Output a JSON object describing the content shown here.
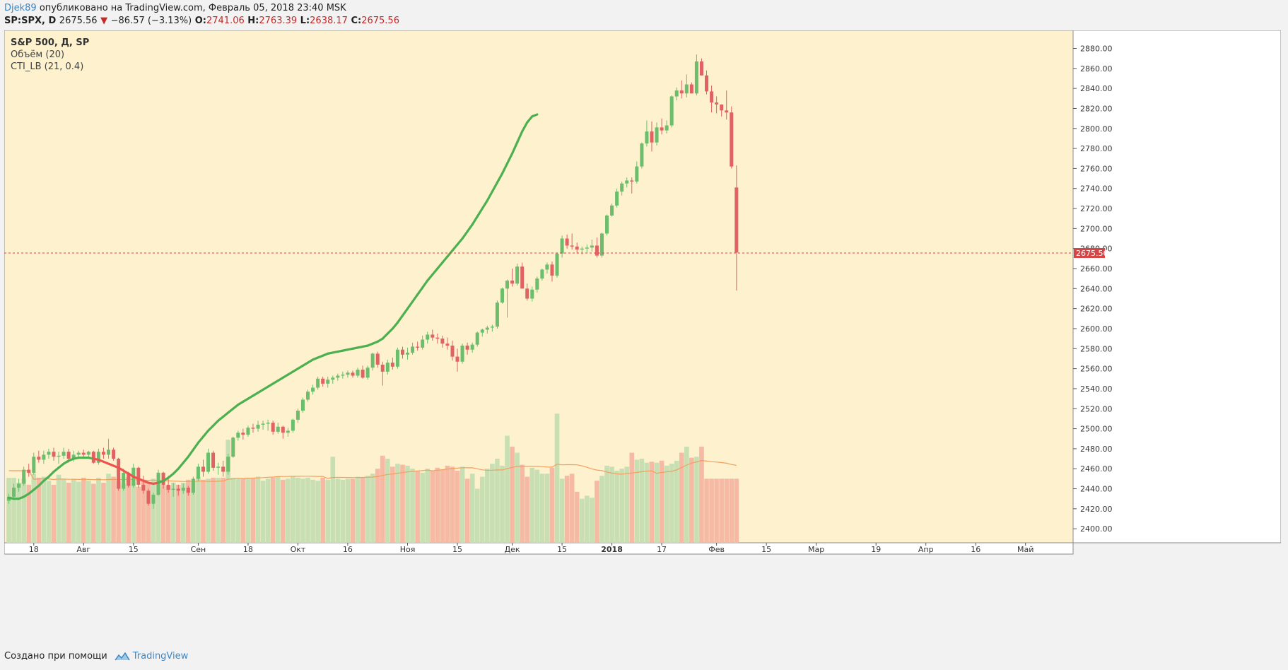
{
  "header": {
    "author": "Djek89",
    "published_text": "опубликовано на TradingView.com, Февраль 05, 2018 23:40 MSK",
    "symbol": "SP:SPX, D",
    "last_price": "2675.56",
    "change_arrow": "▼",
    "change": "−86.57 (−3.13%)",
    "o_label": "O:",
    "o_value": "2741.06",
    "h_label": "H:",
    "h_value": "2763.39",
    "l_label": "L:",
    "l_value": "2638.17",
    "c_label": "C:",
    "c_value": "2675.56"
  },
  "legend": {
    "line1": "S&P 500, Д, SP",
    "line2": "Объём (20)",
    "line3": "CTI_LB (21, 0.4)"
  },
  "footer": {
    "created_text": "Создано при помощи",
    "brand": "TradingView"
  },
  "colors": {
    "background": "#fdf1ce",
    "up": "#6cbd6c",
    "down": "#e06262",
    "volume_up": "#c7dfb2",
    "volume_down": "#f6b9a4",
    "volume_ma": "#f0a060",
    "cti_up": "#4caf50",
    "cti_down": "#ef5350",
    "price_line": "#d64545"
  },
  "chart_data": {
    "type": "candlestick",
    "title": "S&P 500, Д, SP",
    "y_axis": {
      "ticks": [
        2400,
        2420,
        2440,
        2460,
        2480,
        2500,
        2520,
        2540,
        2560,
        2580,
        2600,
        2620,
        2640,
        2660,
        2680,
        2700,
        2720,
        2740,
        2760,
        2780,
        2800,
        2820,
        2840,
        2860,
        2880
      ],
      "range": [
        2386,
        2898
      ]
    },
    "x_axis": {
      "labels": [
        {
          "text": "18",
          "bar": 5
        },
        {
          "text": "Авг",
          "bar": 15
        },
        {
          "text": "15",
          "bar": 25
        },
        {
          "text": "Сен",
          "bar": 38
        },
        {
          "text": "18",
          "bar": 48
        },
        {
          "text": "Окт",
          "bar": 58
        },
        {
          "text": "16",
          "bar": 68
        },
        {
          "text": "Ноя",
          "bar": 80
        },
        {
          "text": "15",
          "bar": 90
        },
        {
          "text": "Дек",
          "bar": 101
        },
        {
          "text": "15",
          "bar": 111
        },
        {
          "text": "2018",
          "bar": 121,
          "bold": true
        },
        {
          "text": "17",
          "bar": 131
        },
        {
          "text": "Фев",
          "bar": 142
        },
        {
          "text": "15",
          "bar": 152
        },
        {
          "text": "Мар",
          "bar": 162
        },
        {
          "text": "19",
          "bar": 174
        },
        {
          "text": "Апр",
          "bar": 184
        },
        {
          "text": "16",
          "bar": 194
        },
        {
          "text": "Май",
          "bar": 204
        }
      ],
      "total_slots": 212
    },
    "current_price": 2675.56,
    "ohlc": [
      [
        2428,
        2435,
        2425,
        2432
      ],
      [
        2432,
        2445,
        2429,
        2441
      ],
      [
        2441,
        2450,
        2437,
        2445
      ],
      [
        2445,
        2462,
        2443,
        2459
      ],
      [
        2459,
        2465,
        2452,
        2456
      ],
      [
        2456,
        2476,
        2454,
        2472
      ],
      [
        2472,
        2478,
        2466,
        2469
      ],
      [
        2469,
        2478,
        2465,
        2474
      ],
      [
        2474,
        2480,
        2470,
        2477
      ],
      [
        2477,
        2481,
        2468,
        2472
      ],
      [
        2472,
        2477,
        2465,
        2473
      ],
      [
        2473,
        2481,
        2470,
        2477
      ],
      [
        2477,
        2480,
        2466,
        2470
      ],
      [
        2470,
        2478,
        2467,
        2474
      ],
      [
        2474,
        2478,
        2470,
        2476
      ],
      [
        2476,
        2479,
        2471,
        2474
      ],
      [
        2474,
        2478,
        2470,
        2477
      ],
      [
        2477,
        2478,
        2465,
        2466
      ],
      [
        2466,
        2480,
        2464,
        2477
      ],
      [
        2477,
        2481,
        2470,
        2474
      ],
      [
        2474,
        2490,
        2470,
        2479
      ],
      [
        2479,
        2481,
        2468,
        2470
      ],
      [
        2470,
        2471,
        2438,
        2440
      ],
      [
        2440,
        2460,
        2438,
        2456
      ],
      [
        2456,
        2457,
        2441,
        2443
      ],
      [
        2443,
        2465,
        2441,
        2461
      ],
      [
        2461,
        2462,
        2441,
        2444
      ],
      [
        2444,
        2453,
        2435,
        2438
      ],
      [
        2438,
        2440,
        2423,
        2425
      ],
      [
        2425,
        2436,
        2420,
        2434
      ],
      [
        2434,
        2459,
        2433,
        2456
      ],
      [
        2456,
        2457,
        2440,
        2444
      ],
      [
        2444,
        2453,
        2436,
        2439
      ],
      [
        2439,
        2446,
        2432,
        2440
      ],
      [
        2440,
        2444,
        2433,
        2438
      ],
      [
        2438,
        2445,
        2435,
        2441
      ],
      [
        2441,
        2443,
        2433,
        2436
      ],
      [
        2436,
        2452,
        2434,
        2450
      ],
      [
        2450,
        2465,
        2448,
        2462
      ],
      [
        2462,
        2469,
        2452,
        2457
      ],
      [
        2457,
        2480,
        2455,
        2476
      ],
      [
        2476,
        2478,
        2458,
        2461
      ],
      [
        2461,
        2466,
        2454,
        2462
      ],
      [
        2462,
        2468,
        2452,
        2457
      ],
      [
        2457,
        2475,
        2454,
        2472
      ],
      [
        2472,
        2492,
        2471,
        2491
      ],
      [
        2491,
        2498,
        2488,
        2496
      ],
      [
        2496,
        2500,
        2489,
        2494
      ],
      [
        2494,
        2503,
        2492,
        2501
      ],
      [
        2501,
        2505,
        2496,
        2500
      ],
      [
        2500,
        2508,
        2497,
        2504
      ],
      [
        2504,
        2508,
        2499,
        2505
      ],
      [
        2505,
        2509,
        2498,
        2506
      ],
      [
        2506,
        2508,
        2494,
        2497
      ],
      [
        2497,
        2506,
        2495,
        2502
      ],
      [
        2502,
        2503,
        2490,
        2496
      ],
      [
        2496,
        2501,
        2492,
        2498
      ],
      [
        2498,
        2510,
        2496,
        2509
      ],
      [
        2509,
        2520,
        2506,
        2518
      ],
      [
        2518,
        2531,
        2516,
        2529
      ],
      [
        2529,
        2539,
        2527,
        2537
      ],
      [
        2537,
        2544,
        2534,
        2541
      ],
      [
        2541,
        2552,
        2539,
        2550
      ],
      [
        2550,
        2552,
        2542,
        2545
      ],
      [
        2545,
        2552,
        2541,
        2549
      ],
      [
        2549,
        2553,
        2545,
        2551
      ],
      [
        2551,
        2555,
        2548,
        2553
      ],
      [
        2553,
        2557,
        2550,
        2554
      ],
      [
        2554,
        2558,
        2551,
        2556
      ],
      [
        2556,
        2558,
        2551,
        2553
      ],
      [
        2553,
        2561,
        2551,
        2559
      ],
      [
        2559,
        2563,
        2550,
        2551
      ],
      [
        2551,
        2563,
        2549,
        2561
      ],
      [
        2561,
        2576,
        2558,
        2575
      ],
      [
        2575,
        2577,
        2561,
        2564
      ],
      [
        2564,
        2567,
        2543,
        2557
      ],
      [
        2557,
        2569,
        2554,
        2566
      ],
      [
        2566,
        2571,
        2559,
        2562
      ],
      [
        2562,
        2581,
        2560,
        2579
      ],
      [
        2579,
        2582,
        2570,
        2574
      ],
      [
        2574,
        2581,
        2569,
        2576
      ],
      [
        2576,
        2586,
        2574,
        2582
      ],
      [
        2582,
        2587,
        2578,
        2581
      ],
      [
        2581,
        2593,
        2579,
        2589
      ],
      [
        2589,
        2597,
        2585,
        2594
      ],
      [
        2594,
        2599,
        2588,
        2591
      ],
      [
        2591,
        2595,
        2585,
        2590
      ],
      [
        2590,
        2593,
        2581,
        2585
      ],
      [
        2585,
        2591,
        2579,
        2583
      ],
      [
        2583,
        2588,
        2568,
        2572
      ],
      [
        2572,
        2580,
        2557,
        2567
      ],
      [
        2567,
        2585,
        2565,
        2583
      ],
      [
        2583,
        2586,
        2574,
        2579
      ],
      [
        2579,
        2586,
        2576,
        2584
      ],
      [
        2584,
        2597,
        2582,
        2596
      ],
      [
        2596,
        2600,
        2592,
        2599
      ],
      [
        2599,
        2603,
        2595,
        2601
      ],
      [
        2601,
        2604,
        2597,
        2602
      ],
      [
        2602,
        2628,
        2600,
        2626
      ],
      [
        2626,
        2641,
        2625,
        2640
      ],
      [
        2640,
        2649,
        2611,
        2648
      ],
      [
        2648,
        2660,
        2642,
        2645
      ],
      [
        2645,
        2665,
        2643,
        2662
      ],
      [
        2662,
        2666,
        2640,
        2640
      ],
      [
        2640,
        2645,
        2628,
        2630
      ],
      [
        2630,
        2642,
        2627,
        2639
      ],
      [
        2639,
        2652,
        2636,
        2650
      ],
      [
        2650,
        2660,
        2648,
        2659
      ],
      [
        2659,
        2666,
        2655,
        2664
      ],
      [
        2664,
        2667,
        2647,
        2653
      ],
      [
        2653,
        2676,
        2651,
        2675
      ],
      [
        2675,
        2693,
        2671,
        2690
      ],
      [
        2690,
        2694,
        2680,
        2683
      ],
      [
        2683,
        2695,
        2679,
        2682
      ],
      [
        2682,
        2686,
        2675,
        2679
      ],
      [
        2679,
        2682,
        2674,
        2680
      ],
      [
        2680,
        2684,
        2676,
        2681
      ],
      [
        2681,
        2689,
        2677,
        2683
      ],
      [
        2683,
        2691,
        2671,
        2673
      ],
      [
        2673,
        2696,
        2671,
        2695
      ],
      [
        2695,
        2714,
        2693,
        2713
      ],
      [
        2713,
        2725,
        2712,
        2723
      ],
      [
        2723,
        2740,
        2721,
        2737
      ],
      [
        2737,
        2747,
        2733,
        2745
      ],
      [
        2745,
        2751,
        2741,
        2748
      ],
      [
        2748,
        2751,
        2735,
        2747
      ],
      [
        2747,
        2767,
        2745,
        2762
      ],
      [
        2762,
        2786,
        2760,
        2785
      ],
      [
        2785,
        2808,
        2782,
        2797
      ],
      [
        2797,
        2807,
        2777,
        2786
      ],
      [
        2786,
        2806,
        2783,
        2801
      ],
      [
        2801,
        2810,
        2794,
        2798
      ],
      [
        2798,
        2808,
        2795,
        2803
      ],
      [
        2803,
        2833,
        2801,
        2832
      ],
      [
        2832,
        2841,
        2828,
        2838
      ],
      [
        2838,
        2848,
        2830,
        2835
      ],
      [
        2835,
        2854,
        2831,
        2844
      ],
      [
        2844,
        2846,
        2835,
        2835
      ],
      [
        2835,
        2874,
        2833,
        2867
      ],
      [
        2867,
        2870,
        2853,
        2853
      ],
      [
        2853,
        2858,
        2834,
        2837
      ],
      [
        2837,
        2843,
        2816,
        2826
      ],
      [
        2826,
        2832,
        2815,
        2824
      ],
      [
        2824,
        2824,
        2812,
        2818
      ],
      [
        2818,
        2838,
        2809,
        2816
      ],
      [
        2816,
        2822,
        2760,
        2762
      ],
      [
        2741,
        2763,
        2638,
        2676
      ]
    ],
    "volume_max": 2517,
    "volume_min_axis": 2396,
    "volume": [
      2451,
      2451,
      2446,
      2450,
      2444,
      2455,
      2451,
      2452,
      2448,
      2444,
      2454,
      2450,
      2446,
      2450,
      2447,
      2451,
      2448,
      2445,
      2451,
      2446,
      2455,
      2452,
      2448,
      2445,
      2452,
      2447,
      2442,
      2449,
      2446,
      2450,
      2446,
      2444,
      2443,
      2446,
      2444,
      2446,
      2449,
      2448,
      2452,
      2449,
      2450,
      2451,
      2451,
      2451,
      2452,
      2451,
      2450,
      2450,
      2451,
      2451,
      2452,
      2448,
      2450,
      2451,
      2452,
      2449,
      2450,
      2452,
      2451,
      2450,
      2451,
      2449,
      2448,
      2451,
      2449,
      2451,
      2450,
      2449,
      2450,
      2450,
      2452,
      2451,
      2453,
      2455,
      2460,
      2458,
      2460,
      2462,
      2465,
      2464,
      2463,
      2460,
      2458,
      2456,
      2460,
      2458,
      2461,
      2459,
      2463,
      2462,
      2458,
      2462,
      2450,
      2455,
      2440,
      2452,
      2460,
      2465,
      2470,
      2463,
      2459,
      2460,
      2458,
      2456,
      2452,
      2461,
      2459,
      2455,
      2455,
      2461,
      2454,
      2450,
      2453,
      2455,
      2437,
      2430,
      2433,
      2431,
      2448,
      2453,
      2463,
      2462,
      2458,
      2460,
      2462,
      2460,
      2462,
      2465,
      2466,
      2467,
      2466,
      2468,
      2463,
      2465,
      2468,
      2470,
      2467,
      2471,
      2469,
      2478
    ],
    "volume_tall": {
      "100": 2493,
      "101": 2482,
      "110": 2515,
      "102": 2476,
      "103": 2464,
      "75": 2473,
      "76": 2470,
      "65": 2472,
      "44": 2489,
      "125": 2476,
      "126": 2469,
      "127": 2470,
      "135": 2476,
      "136": 2482,
      "138": 2472,
      "139": 2482
    },
    "volume_ma_start": 2458,
    "cti": [
      2431,
      2430,
      2430,
      2432,
      2435,
      2439,
      2443,
      2448,
      2452,
      2457,
      2461,
      2465,
      2468,
      2470,
      2471,
      2471,
      2471,
      2470,
      2469,
      2467,
      2465,
      2463,
      2461,
      2458,
      2455,
      2452,
      2450,
      2448,
      2446,
      2445,
      2446,
      2448,
      2451,
      2455,
      2460,
      2466,
      2472,
      2479,
      2486,
      2492,
      2498,
      2503,
      2508,
      2512,
      2516,
      2520,
      2524,
      2527,
      2530,
      2533,
      2536,
      2539,
      2542,
      2545,
      2548,
      2551,
      2554,
      2557,
      2560,
      2563,
      2566,
      2569,
      2571,
      2573,
      2575,
      2576,
      2577,
      2578,
      2579,
      2580,
      2581,
      2582,
      2583,
      2585,
      2587,
      2590,
      2595,
      2600,
      2606,
      2613,
      2620,
      2627,
      2634,
      2641,
      2648,
      2654,
      2660,
      2666,
      2672,
      2678,
      2684,
      2690,
      2697,
      2704,
      2712,
      2720,
      2728,
      2737,
      2746,
      2755,
      2765,
      2775,
      2786,
      2797,
      2806,
      2812,
      2814
    ]
  }
}
